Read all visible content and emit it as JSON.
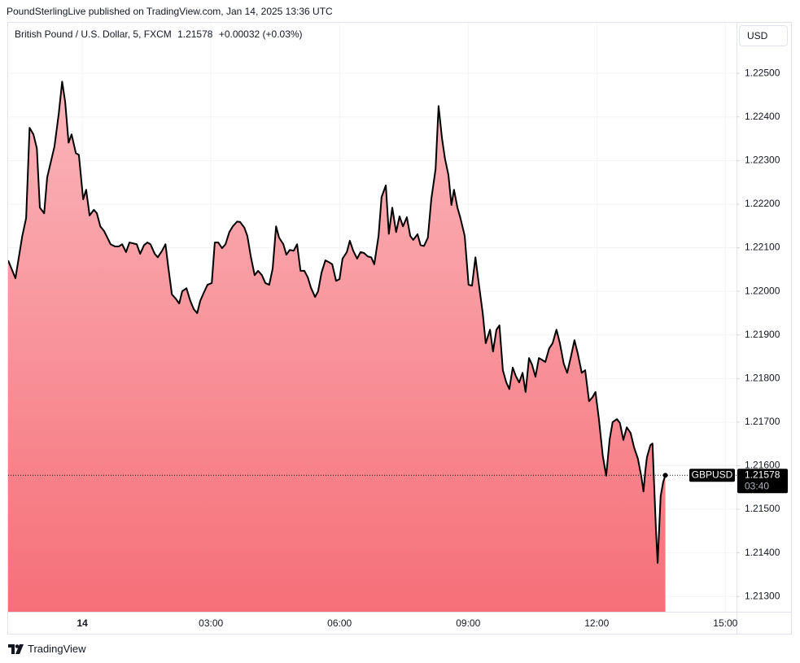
{
  "header": "PoundSterlingLive published on TradingView.com, Jan 14, 2025 13:36 UTC",
  "brand": "TradingView",
  "chart_data": {
    "type": "area",
    "legend": {
      "name": "British Pound / U.S. Dollar, 5, FXCM",
      "change": "+0.00032 (+0.03%)"
    },
    "currency": "USD",
    "symbol_label": "GBPUSD",
    "countdown": "03:40",
    "x": [
      -1.73,
      -1.56,
      -1.4,
      -1.31,
      -1.23,
      -1.14,
      -1.06,
      -0.99,
      -0.89,
      -0.82,
      -0.65,
      -0.55,
      -0.47,
      -0.4,
      -0.32,
      -0.25,
      -0.15,
      -0.08,
      0.02,
      0.09,
      0.17,
      0.27,
      0.34,
      0.42,
      0.51,
      0.66,
      0.76,
      0.85,
      0.93,
      1.02,
      1.1,
      1.27,
      1.35,
      1.44,
      1.52,
      1.59,
      1.69,
      1.76,
      1.86,
      1.94,
      2.01,
      2.09,
      2.18,
      2.26,
      2.33,
      2.43,
      2.52,
      2.6,
      2.68,
      2.75,
      2.83,
      2.92,
      3.02,
      3.09,
      3.17,
      3.26,
      3.34,
      3.43,
      3.51,
      3.61,
      3.68,
      3.78,
      3.85,
      3.93,
      4.02,
      4.1,
      4.19,
      4.27,
      4.36,
      4.44,
      4.52,
      4.59,
      4.69,
      4.76,
      4.84,
      4.93,
      5.01,
      5.09,
      5.18,
      5.26,
      5.33,
      5.43,
      5.5,
      5.58,
      5.67,
      5.75,
      5.83,
      5.92,
      6.0,
      6.07,
      6.17,
      6.24,
      6.32,
      6.41,
      6.49,
      6.57,
      6.66,
      6.74,
      6.81,
      6.91,
      6.98,
      7.08,
      7.15,
      7.23,
      7.32,
      7.4,
      7.48,
      7.57,
      7.65,
      7.72,
      7.82,
      7.89,
      7.97,
      8.06,
      8.14,
      8.24,
      8.31,
      8.39,
      8.46,
      8.54,
      8.61,
      8.67,
      8.75,
      8.82,
      8.92,
      9.01,
      9.09,
      9.17,
      9.24,
      9.34,
      9.41,
      9.51,
      9.58,
      9.66,
      9.73,
      9.81,
      9.89,
      9.96,
      10.04,
      10.11,
      10.19,
      10.27,
      10.34,
      10.42,
      10.49,
      10.57,
      10.65,
      10.72,
      10.8,
      10.89,
      10.97,
      11.06,
      11.14,
      11.23,
      11.31,
      11.39,
      11.48,
      11.56,
      11.65,
      11.73,
      11.82,
      11.9,
      11.97,
      12.05,
      12.14,
      12.22,
      12.3,
      12.37,
      12.47,
      12.54,
      12.62,
      12.7,
      12.79,
      12.87,
      12.96,
      13.04,
      13.09,
      13.13,
      13.17,
      13.25,
      13.3,
      13.38,
      13.42,
      13.49,
      13.55,
      13.6
    ],
    "series": [
      {
        "name": "GBPUSD",
        "color": "#000000",
        "fill_top": "#fab6bb",
        "fill_bottom": "#f66f78",
        "values": [
          1.22071,
          1.2203,
          1.22127,
          1.22168,
          1.22375,
          1.2236,
          1.22328,
          1.22192,
          1.22179,
          1.22261,
          1.22332,
          1.22407,
          1.22481,
          1.22435,
          1.22341,
          1.2236,
          1.22317,
          1.22313,
          1.22211,
          1.22233,
          1.22174,
          1.22187,
          1.22179,
          1.22149,
          1.22138,
          1.22108,
          1.22103,
          1.22103,
          1.22108,
          1.2209,
          1.22112,
          1.22108,
          1.22086,
          1.22106,
          1.22112,
          1.22108,
          1.22086,
          1.22078,
          1.22093,
          1.22108,
          1.22052,
          1.21993,
          1.21983,
          1.21972,
          1.22,
          1.22007,
          1.21978,
          1.21959,
          1.2195,
          1.21978,
          1.21996,
          1.22015,
          1.22019,
          1.22112,
          1.22112,
          1.22099,
          1.22108,
          1.22136,
          1.22149,
          1.2216,
          1.22159,
          1.22146,
          1.22127,
          1.2208,
          1.22037,
          1.22047,
          1.22037,
          1.22019,
          1.22015,
          1.22052,
          1.22149,
          1.22123,
          1.22108,
          1.22084,
          1.22095,
          1.22093,
          1.22108,
          1.22047,
          1.22047,
          1.22032,
          1.22009,
          1.21987,
          1.22,
          1.22043,
          1.22071,
          1.22067,
          1.22062,
          1.22024,
          1.22028,
          1.22075,
          1.2209,
          1.22116,
          1.22093,
          1.22075,
          1.2209,
          1.22088,
          1.2208,
          1.22078,
          1.22062,
          1.22127,
          1.22216,
          1.22243,
          1.22132,
          1.22192,
          1.22136,
          1.22172,
          1.22149,
          1.2217,
          1.22127,
          1.22118,
          1.22131,
          1.22106,
          1.22104,
          1.22123,
          1.22211,
          1.2228,
          1.22425,
          1.22351,
          1.22304,
          1.22267,
          1.22198,
          1.22233,
          1.22192,
          1.22168,
          1.22127,
          1.22015,
          1.22013,
          1.22078,
          1.22024,
          1.2195,
          1.21881,
          1.21912,
          1.21862,
          1.21912,
          1.21922,
          1.21819,
          1.21791,
          1.21776,
          1.21825,
          1.21806,
          1.21791,
          1.21813,
          1.21769,
          1.21847,
          1.21832,
          1.21804,
          1.21847,
          1.21843,
          1.21838,
          1.21869,
          1.21881,
          1.21912,
          1.21881,
          1.21834,
          1.21813,
          1.21847,
          1.21888,
          1.21856,
          1.21813,
          1.21819,
          1.21748,
          1.21757,
          1.21769,
          1.21707,
          1.21623,
          1.21577,
          1.2166,
          1.217,
          1.21707,
          1.21698,
          1.21659,
          1.21688,
          1.21675,
          1.21642,
          1.21616,
          1.21575,
          1.21541,
          1.21586,
          1.21619,
          1.21647,
          1.21651,
          1.21455,
          1.21377,
          1.2153,
          1.21563,
          1.21578
        ]
      }
    ],
    "xlim": [
      -1.73,
      15.26
    ],
    "xticks": [
      {
        "value": 0,
        "label": "14"
      },
      {
        "value": 3,
        "label": "03:00"
      },
      {
        "value": 6,
        "label": "06:00"
      },
      {
        "value": 9,
        "label": "09:00"
      },
      {
        "value": 12,
        "label": "12:00"
      },
      {
        "value": 15,
        "label": "15:00"
      }
    ],
    "ylim": [
      1.21265,
      1.22616
    ],
    "yticks": [
      {
        "value": 1.213,
        "label": "1.21300"
      },
      {
        "value": 1.214,
        "label": "1.21400"
      },
      {
        "value": 1.215,
        "label": "1.21500"
      },
      {
        "value": 1.216,
        "label": "1.21600"
      },
      {
        "value": 1.217,
        "label": "1.21700"
      },
      {
        "value": 1.218,
        "label": "1.21800"
      },
      {
        "value": 1.219,
        "label": "1.21900"
      },
      {
        "value": 1.22,
        "label": "1.22000"
      },
      {
        "value": 1.221,
        "label": "1.22100"
      },
      {
        "value": 1.222,
        "label": "1.22200"
      },
      {
        "value": 1.223,
        "label": "1.22300"
      },
      {
        "value": 1.224,
        "label": "1.22400"
      },
      {
        "value": 1.225,
        "label": "1.22500"
      }
    ],
    "grid": true
  }
}
